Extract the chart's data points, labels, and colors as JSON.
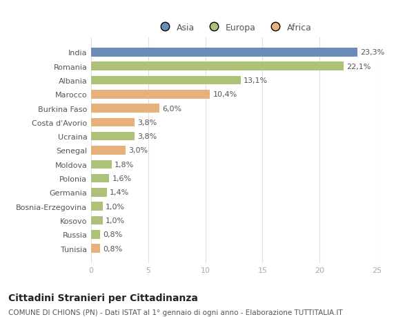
{
  "countries": [
    "India",
    "Romania",
    "Albania",
    "Marocco",
    "Burkina Faso",
    "Costa d'Avorio",
    "Ucraina",
    "Senegal",
    "Moldova",
    "Polonia",
    "Germania",
    "Bosnia-Erzegovina",
    "Kosovo",
    "Russia",
    "Tunisia"
  ],
  "values": [
    23.3,
    22.1,
    13.1,
    10.4,
    6.0,
    3.8,
    3.8,
    3.0,
    1.8,
    1.6,
    1.4,
    1.0,
    1.0,
    0.8,
    0.8
  ],
  "labels": [
    "23,3%",
    "22,1%",
    "13,1%",
    "10,4%",
    "6,0%",
    "3,8%",
    "3,8%",
    "3,0%",
    "1,8%",
    "1,6%",
    "1,4%",
    "1,0%",
    "1,0%",
    "0,8%",
    "0,8%"
  ],
  "colors": [
    "#6b8cb8",
    "#adc178",
    "#adc178",
    "#e8b07a",
    "#e8b07a",
    "#e8b07a",
    "#adc178",
    "#e8b07a",
    "#adc178",
    "#adc178",
    "#adc178",
    "#adc178",
    "#adc178",
    "#adc178",
    "#e8b07a"
  ],
  "legend_labels": [
    "Asia",
    "Europa",
    "Africa"
  ],
  "legend_colors": [
    "#6b8cb8",
    "#adc178",
    "#e8b07a"
  ],
  "title": "Cittadini Stranieri per Cittadinanza",
  "subtitle": "COMUNE DI CHIONS (PN) - Dati ISTAT al 1° gennaio di ogni anno - Elaborazione TUTTITALIA.IT",
  "xlim": [
    0,
    25
  ],
  "xticks": [
    0,
    5,
    10,
    15,
    20,
    25
  ],
  "background_color": "#ffffff",
  "bar_height": 0.62,
  "label_fontsize": 8,
  "tick_fontsize": 8,
  "title_fontsize": 10,
  "subtitle_fontsize": 7.5
}
